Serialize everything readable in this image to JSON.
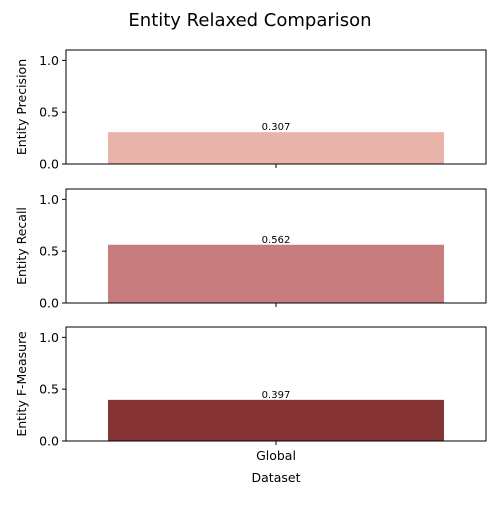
{
  "chart_data": {
    "type": "bar",
    "title": "Entity Relaxed Comparison",
    "xlabel": "Dataset",
    "categories": [
      "Global"
    ],
    "panels": [
      {
        "ylabel": "Entity Precision",
        "values": [
          0.307
        ],
        "value_labels": [
          "0.307"
        ],
        "color": "#e8b3a8",
        "ylim": [
          0,
          1.1
        ],
        "yticks": [
          0.0,
          0.5,
          1.0
        ],
        "ytick_labels": [
          "0.0",
          "0.5",
          "1.0"
        ]
      },
      {
        "ylabel": "Entity Recall",
        "values": [
          0.562
        ],
        "value_labels": [
          "0.562"
        ],
        "color": "#c77d7d",
        "ylim": [
          0,
          1.1
        ],
        "yticks": [
          0.0,
          0.5,
          1.0
        ],
        "ytick_labels": [
          "0.0",
          "0.5",
          "1.0"
        ]
      },
      {
        "ylabel": "Entity F-Measure",
        "values": [
          0.397
        ],
        "value_labels": [
          "0.397"
        ],
        "color": "#853335",
        "ylim": [
          0,
          1.1
        ],
        "yticks": [
          0.0,
          0.5,
          1.0
        ],
        "ytick_labels": [
          "0.0",
          "0.5",
          "1.0"
        ]
      }
    ],
    "grid": false,
    "legend": "none"
  }
}
